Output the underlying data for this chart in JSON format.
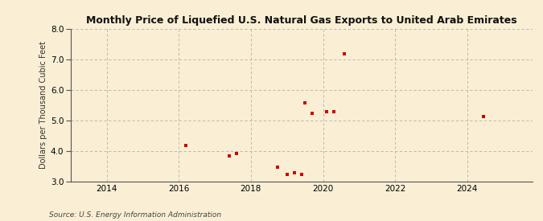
{
  "title": "Monthly Price of Liquefied U.S. Natural Gas Exports to United Arab Emirates",
  "ylabel": "Dollars per Thousand Cubic Feet",
  "source": "Source: U.S. Energy Information Administration",
  "background_color": "#faefd4",
  "point_color": "#cc0000",
  "xlim": [
    2013.0,
    2025.8
  ],
  "ylim": [
    3.0,
    8.0
  ],
  "yticks": [
    3.0,
    4.0,
    5.0,
    6.0,
    7.0,
    8.0
  ],
  "xticks": [
    2014,
    2016,
    2018,
    2020,
    2022,
    2024
  ],
  "data_points": [
    [
      2016.2,
      4.18
    ],
    [
      2017.4,
      3.82
    ],
    [
      2017.6,
      3.9
    ],
    [
      2018.75,
      3.47
    ],
    [
      2019.0,
      3.22
    ],
    [
      2019.2,
      3.28
    ],
    [
      2019.4,
      3.22
    ],
    [
      2019.5,
      5.58
    ],
    [
      2019.7,
      5.23
    ],
    [
      2020.1,
      5.28
    ],
    [
      2020.3,
      5.28
    ],
    [
      2020.6,
      7.18
    ],
    [
      2024.45,
      5.12
    ]
  ]
}
